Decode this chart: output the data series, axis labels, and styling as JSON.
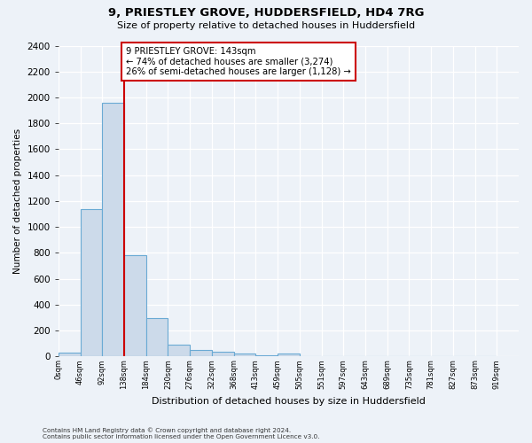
{
  "title": "9, PRIESTLEY GROVE, HUDDERSFIELD, HD4 7RG",
  "subtitle": "Size of property relative to detached houses in Huddersfield",
  "xlabel": "Distribution of detached houses by size in Huddersfield",
  "ylabel": "Number of detached properties",
  "footnote1": "Contains HM Land Registry data © Crown copyright and database right 2024.",
  "footnote2": "Contains public sector information licensed under the Open Government Licence v3.0.",
  "bin_labels": [
    "0sqm",
    "46sqm",
    "92sqm",
    "138sqm",
    "184sqm",
    "230sqm",
    "276sqm",
    "322sqm",
    "368sqm",
    "413sqm",
    "459sqm",
    "505sqm",
    "551sqm",
    "597sqm",
    "643sqm",
    "689sqm",
    "735sqm",
    "781sqm",
    "827sqm",
    "873sqm",
    "919sqm"
  ],
  "bar_values": [
    30,
    1140,
    1960,
    780,
    295,
    90,
    50,
    40,
    25,
    10,
    20,
    0,
    0,
    0,
    0,
    0,
    0,
    0,
    0,
    0
  ],
  "bar_color": "#ccdaea",
  "bar_edge_color": "#6aaad4",
  "ylim": [
    0,
    2400
  ],
  "yticks": [
    0,
    200,
    400,
    600,
    800,
    1000,
    1200,
    1400,
    1600,
    1800,
    2000,
    2200,
    2400
  ],
  "property_size_bin": 3,
  "red_line_color": "#cc0000",
  "annotation_line1": "9 PRIESTLEY GROVE: 143sqm",
  "annotation_line2": "← 74% of detached houses are smaller (3,274)",
  "annotation_line3": "26% of semi-detached houses are larger (1,128) →",
  "annotation_box_color": "#ffffff",
  "annotation_border_color": "#cc0000",
  "background_color": "#edf2f8",
  "grid_color": "#ffffff",
  "n_bins": 20,
  "bin_width": 46
}
